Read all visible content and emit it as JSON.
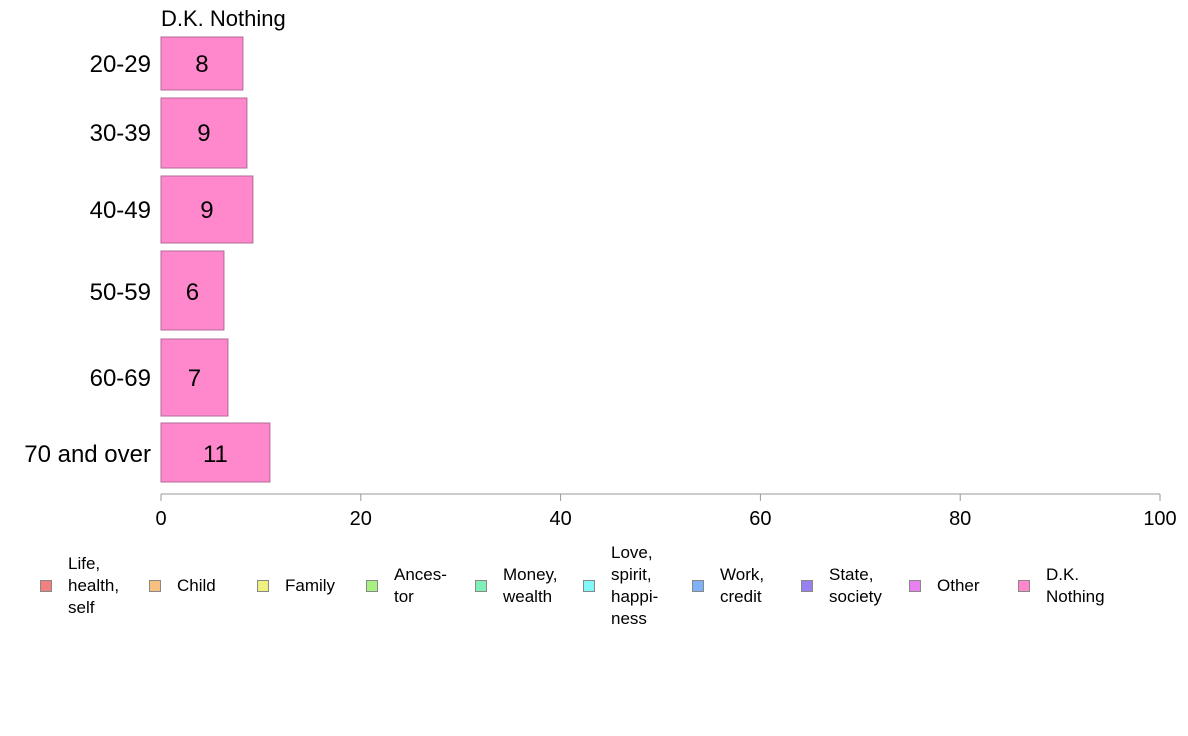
{
  "chart_data": {
    "type": "bar",
    "orientation": "horizontal",
    "title": "D.K. Nothing",
    "categories": [
      "20-29",
      "30-39",
      "40-49",
      "50-59",
      "60-69",
      "70 and over"
    ],
    "values": [
      8,
      9,
      9,
      6,
      7,
      11
    ],
    "plotted_values": [
      8.2,
      8.6,
      9.2,
      6.3,
      6.7,
      10.9
    ],
    "xlim": [
      0,
      100
    ],
    "xticks": [
      "0",
      "20",
      "40",
      "60",
      "80",
      "100"
    ],
    "grid": false,
    "bar_color": "#ff88cc",
    "bar_stroke": "#b06a98",
    "axis_color": "#999999",
    "legend": {
      "placement": "bottom",
      "items": [
        {
          "label": "Life,\nhealth,\nself",
          "color": "#f28080"
        },
        {
          "label": "Child",
          "color": "#f7c080"
        },
        {
          "label": "Family",
          "color": "#eef080"
        },
        {
          "label": "Ances-\ntor",
          "color": "#a8f080"
        },
        {
          "label": "Money,\nwealth",
          "color": "#80f0b8"
        },
        {
          "label": "Love,\nspirit,\nhappi-\nness",
          "color": "#80f8f8"
        },
        {
          "label": "Work,\ncredit",
          "color": "#80b0f8"
        },
        {
          "label": "State,\nsociety",
          "color": "#9880f0"
        },
        {
          "label": "Other",
          "color": "#e880f0"
        },
        {
          "label": "D.K.\nNothing",
          "color": "#ff88cc"
        }
      ]
    }
  }
}
